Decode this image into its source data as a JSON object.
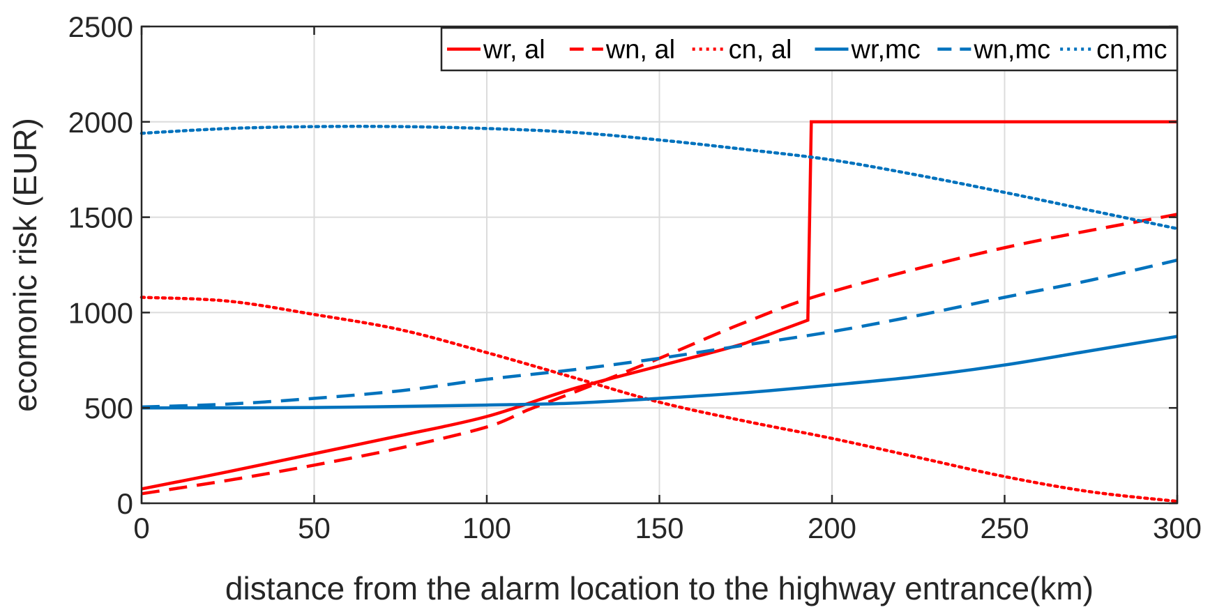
{
  "chart_data": {
    "type": "line",
    "title": "",
    "xlabel": "distance from the alarm location to the highway entrance(km)",
    "ylabel": "ecomonic risk (EUR)",
    "xlim": [
      0,
      300
    ],
    "ylim": [
      0,
      2500
    ],
    "xticks": [
      0,
      50,
      100,
      150,
      200,
      250,
      300
    ],
    "yticks": [
      0,
      500,
      1000,
      1500,
      2000,
      2500
    ],
    "grid": true,
    "legend_position": "top-right",
    "colors": {
      "red": "#ff0000",
      "blue": "#0072bd"
    },
    "series": [
      {
        "name": "wr, al",
        "color": "#ff0000",
        "style": "solid",
        "x": [
          0,
          25,
          50,
          75,
          100,
          125,
          150,
          175,
          193,
          194,
          200,
          250,
          300
        ],
        "y": [
          75,
          165,
          260,
          355,
          455,
          600,
          720,
          840,
          960,
          2000,
          2000,
          2000,
          2000
        ]
      },
      {
        "name": "wn, al",
        "color": "#ff0000",
        "style": "dashed",
        "x": [
          0,
          25,
          50,
          75,
          100,
          112,
          125,
          150,
          175,
          200,
          250,
          300
        ],
        "y": [
          50,
          120,
          200,
          290,
          400,
          490,
          580,
          760,
          950,
          1110,
          1340,
          1515
        ]
      },
      {
        "name": "cn, al",
        "color": "#ff0000",
        "style": "dotted",
        "x": [
          0,
          25,
          50,
          75,
          100,
          125,
          150,
          175,
          200,
          225,
          250,
          275,
          300
        ],
        "y": [
          1080,
          1060,
          990,
          910,
          790,
          660,
          530,
          430,
          340,
          240,
          140,
          60,
          10
        ]
      },
      {
        "name": "wr,mc",
        "color": "#0072bd",
        "style": "solid",
        "x": [
          0,
          50,
          100,
          125,
          150,
          175,
          200,
          225,
          250,
          275,
          300
        ],
        "y": [
          500,
          502,
          515,
          525,
          550,
          580,
          620,
          665,
          725,
          800,
          875
        ]
      },
      {
        "name": "wn,mc",
        "color": "#0072bd",
        "style": "dashed",
        "x": [
          0,
          25,
          50,
          75,
          100,
          125,
          150,
          175,
          200,
          225,
          250,
          275,
          300
        ],
        "y": [
          505,
          520,
          550,
          590,
          650,
          700,
          760,
          830,
          900,
          985,
          1080,
          1170,
          1275
        ]
      },
      {
        "name": "cn,mc",
        "color": "#0072bd",
        "style": "dotted",
        "x": [
          0,
          25,
          50,
          75,
          100,
          125,
          150,
          175,
          200,
          225,
          250,
          275,
          300
        ],
        "y": [
          1940,
          1965,
          1975,
          1975,
          1965,
          1945,
          1905,
          1855,
          1800,
          1720,
          1630,
          1535,
          1440
        ]
      }
    ]
  }
}
